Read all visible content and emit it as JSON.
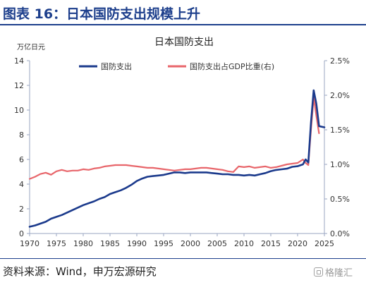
{
  "figure": {
    "title": "图表 16：日本国防支出规模上升",
    "source": "资料来源：Wind，申万宏源研究",
    "watermark": "格隆汇"
  },
  "colors": {
    "header": "#1d3f8c",
    "series_spending": "#1b3a8c",
    "series_gdp_ratio": "#e8666b",
    "axis": "#9aa6c2"
  },
  "chart_data": {
    "type": "line",
    "title": "日本国防支出",
    "y_unit_label": "万亿日元",
    "x_range": [
      1970,
      2025
    ],
    "x_ticks": [
      1970,
      1975,
      1980,
      1985,
      1990,
      1995,
      2000,
      2005,
      2010,
      2015,
      2020,
      2025
    ],
    "y_left": {
      "range": [
        0,
        14
      ],
      "ticks": [
        "0",
        "2",
        "4",
        "6",
        "8",
        "10",
        "12",
        "14"
      ]
    },
    "y_right": {
      "range": [
        0,
        2.5
      ],
      "ticks": [
        "0.0%",
        "0.5%",
        "1.0%",
        "1.5%",
        "2.0%",
        "2.5%"
      ]
    },
    "legend_position": "top",
    "series": [
      {
        "name": "国防支出",
        "axis": "left",
        "points": [
          [
            1970,
            0.55
          ],
          [
            1971,
            0.65
          ],
          [
            1972,
            0.8
          ],
          [
            1973,
            0.95
          ],
          [
            1974,
            1.2
          ],
          [
            1975,
            1.35
          ],
          [
            1976,
            1.5
          ],
          [
            1977,
            1.7
          ],
          [
            1978,
            1.9
          ],
          [
            1979,
            2.1
          ],
          [
            1980,
            2.3
          ],
          [
            1981,
            2.45
          ],
          [
            1982,
            2.6
          ],
          [
            1983,
            2.8
          ],
          [
            1984,
            2.95
          ],
          [
            1985,
            3.2
          ],
          [
            1986,
            3.35
          ],
          [
            1987,
            3.5
          ],
          [
            1988,
            3.7
          ],
          [
            1989,
            3.95
          ],
          [
            1990,
            4.25
          ],
          [
            1991,
            4.45
          ],
          [
            1992,
            4.6
          ],
          [
            1993,
            4.65
          ],
          [
            1994,
            4.7
          ],
          [
            1995,
            4.75
          ],
          [
            1996,
            4.85
          ],
          [
            1997,
            4.95
          ],
          [
            1998,
            4.95
          ],
          [
            1999,
            4.9
          ],
          [
            2000,
            4.95
          ],
          [
            2001,
            4.95
          ],
          [
            2002,
            4.95
          ],
          [
            2003,
            4.95
          ],
          [
            2004,
            4.9
          ],
          [
            2005,
            4.85
          ],
          [
            2006,
            4.8
          ],
          [
            2007,
            4.8
          ],
          [
            2008,
            4.75
          ],
          [
            2009,
            4.75
          ],
          [
            2010,
            4.7
          ],
          [
            2011,
            4.75
          ],
          [
            2012,
            4.7
          ],
          [
            2013,
            4.8
          ],
          [
            2014,
            4.9
          ],
          [
            2015,
            5.05
          ],
          [
            2016,
            5.15
          ],
          [
            2017,
            5.2
          ],
          [
            2018,
            5.25
          ],
          [
            2019,
            5.4
          ],
          [
            2020,
            5.45
          ],
          [
            2021,
            5.6
          ],
          [
            2021.5,
            6.0
          ],
          [
            2022,
            5.75
          ],
          [
            2022.5,
            9.0
          ],
          [
            2023,
            11.6
          ],
          [
            2023.5,
            10.5
          ],
          [
            2024,
            8.7
          ],
          [
            2025,
            8.6
          ]
        ]
      },
      {
        "name": "国防支出占GDP比重(右)",
        "axis": "right",
        "points": [
          [
            1970,
            0.79
          ],
          [
            1971,
            0.82
          ],
          [
            1972,
            0.86
          ],
          [
            1973,
            0.88
          ],
          [
            1974,
            0.85
          ],
          [
            1975,
            0.9
          ],
          [
            1976,
            0.92
          ],
          [
            1977,
            0.9
          ],
          [
            1978,
            0.91
          ],
          [
            1979,
            0.91
          ],
          [
            1980,
            0.93
          ],
          [
            1981,
            0.92
          ],
          [
            1982,
            0.94
          ],
          [
            1983,
            0.95
          ],
          [
            1984,
            0.97
          ],
          [
            1985,
            0.98
          ],
          [
            1986,
            0.99
          ],
          [
            1987,
            0.99
          ],
          [
            1988,
            0.99
          ],
          [
            1989,
            0.98
          ],
          [
            1990,
            0.97
          ],
          [
            1991,
            0.96
          ],
          [
            1992,
            0.95
          ],
          [
            1993,
            0.95
          ],
          [
            1994,
            0.94
          ],
          [
            1995,
            0.93
          ],
          [
            1996,
            0.92
          ],
          [
            1997,
            0.91
          ],
          [
            1998,
            0.92
          ],
          [
            1999,
            0.93
          ],
          [
            2000,
            0.93
          ],
          [
            2001,
            0.94
          ],
          [
            2002,
            0.95
          ],
          [
            2003,
            0.95
          ],
          [
            2004,
            0.94
          ],
          [
            2005,
            0.93
          ],
          [
            2006,
            0.92
          ],
          [
            2007,
            0.9
          ],
          [
            2008,
            0.89
          ],
          [
            2009,
            0.97
          ],
          [
            2010,
            0.96
          ],
          [
            2011,
            0.97
          ],
          [
            2012,
            0.95
          ],
          [
            2013,
            0.96
          ],
          [
            2014,
            0.97
          ],
          [
            2015,
            0.95
          ],
          [
            2016,
            0.96
          ],
          [
            2017,
            0.98
          ],
          [
            2018,
            1.0
          ],
          [
            2019,
            1.01
          ],
          [
            2020,
            1.02
          ],
          [
            2021,
            1.07
          ],
          [
            2021.5,
            1.02
          ],
          [
            2022,
            0.99
          ],
          [
            2022.5,
            1.5
          ],
          [
            2023,
            1.97
          ],
          [
            2023.5,
            1.7
          ],
          [
            2024,
            1.45
          ]
        ]
      }
    ]
  }
}
